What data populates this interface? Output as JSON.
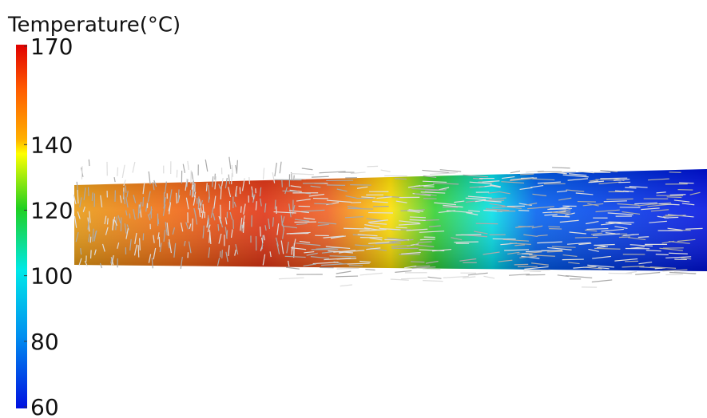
{
  "colorbar": {
    "title": "Temperature(°C)",
    "range": [
      60,
      170
    ],
    "ticks": [
      170,
      140,
      120,
      100,
      80,
      60
    ]
  }
}
